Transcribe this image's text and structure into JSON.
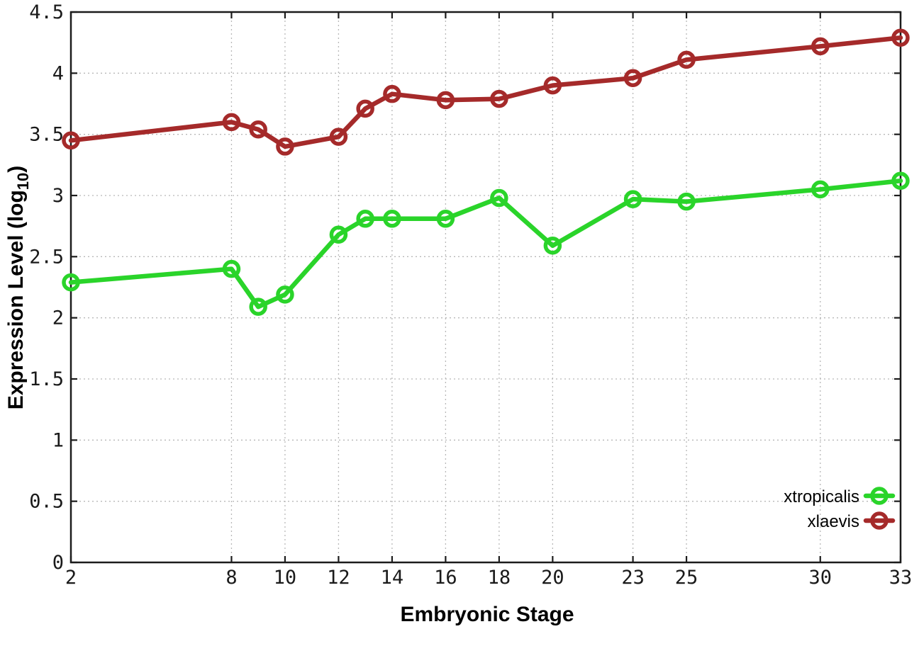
{
  "chart_data": {
    "type": "line",
    "title": "",
    "xlabel": "Embryonic Stage",
    "ylabel": "Expression Level (log10)",
    "ylabel_parts": {
      "pre": "Expression Level (log",
      "sub": "10",
      "post": ")"
    },
    "xlim": [
      2,
      33
    ],
    "ylim": [
      0,
      4.5
    ],
    "grid": true,
    "legend_position": "inside-bottom-right",
    "x": [
      2,
      8,
      9,
      10,
      12,
      13,
      14,
      16,
      18,
      20,
      23,
      25,
      30,
      33
    ],
    "xticks": [
      2,
      8,
      10,
      12,
      14,
      16,
      18,
      20,
      23,
      25,
      30,
      33
    ],
    "xtick_labels": [
      "2",
      "8",
      "10",
      "12",
      "14",
      "16",
      "18",
      "20",
      "23",
      "25",
      "30",
      "33"
    ],
    "yticks": [
      0,
      0.5,
      1,
      1.5,
      2,
      2.5,
      3,
      3.5,
      4,
      4.5
    ],
    "ytick_labels": [
      "0",
      "0.5",
      "1",
      "1.5",
      "2",
      "2.5",
      "3",
      "3.5",
      "4",
      "4.5"
    ],
    "series": [
      {
        "name": "xtropicalis",
        "color": "#2ad42a",
        "marker": "open-circle",
        "values": [
          2.29,
          2.4,
          2.09,
          2.19,
          2.68,
          2.81,
          2.81,
          2.81,
          2.98,
          2.59,
          2.97,
          2.95,
          3.05,
          3.12
        ]
      },
      {
        "name": "xlaevis",
        "color": "#a52a2a",
        "marker": "open-circle",
        "values": [
          3.45,
          3.6,
          3.54,
          3.4,
          3.48,
          3.71,
          3.83,
          3.78,
          3.79,
          3.9,
          3.96,
          4.11,
          4.22,
          4.29
        ]
      }
    ]
  }
}
